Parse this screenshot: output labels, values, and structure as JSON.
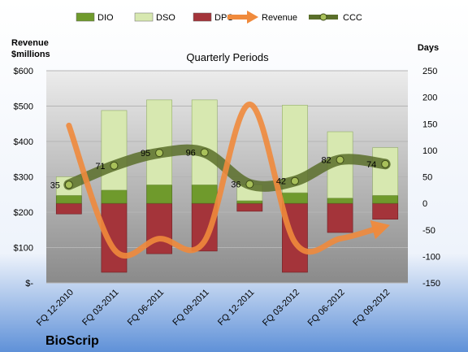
{
  "company": "BioScrip",
  "chart_data": {
    "type": "bar",
    "title": "Quarterly Periods",
    "y_left_label_line1": "Revenue",
    "y_left_label_line2": "$millions",
    "y_right_label": "Days",
    "y_left_range": [
      0,
      600
    ],
    "y_right_range": [
      -150,
      250
    ],
    "y_left_ticks": [
      "$-",
      "$100",
      "$200",
      "$300",
      "$400",
      "$500",
      "$600"
    ],
    "y_right_ticks": [
      "-150",
      "-100",
      "-50",
      "0",
      "50",
      "100",
      "150",
      "200",
      "250"
    ],
    "categories": [
      "FQ 12-2010",
      "FQ 03-2011",
      "FQ 06-2011",
      "FQ 09-2011",
      "FQ 12-2011",
      "FQ 03-2012",
      "FQ 06-2012",
      "FQ 09-2012"
    ],
    "legend_position": "top",
    "series": [
      {
        "name": "DIO",
        "axis": "right",
        "kind": "stacked-bar",
        "color": "#6f9a2c",
        "values": [
          15,
          25,
          35,
          35,
          5,
          20,
          10,
          15
        ]
      },
      {
        "name": "DSO",
        "axis": "right",
        "kind": "stacked-bar",
        "color": "#d7e8b0",
        "values": [
          35,
          150,
          160,
          160,
          30,
          165,
          125,
          90
        ]
      },
      {
        "name": "DPO",
        "axis": "right",
        "kind": "bar-negative",
        "color": "#a4343a",
        "values": [
          -20,
          -130,
          -95,
          -90,
          -15,
          -130,
          -55,
          -30
        ]
      },
      {
        "name": "Revenue",
        "axis": "left",
        "kind": "line",
        "color": "#f08a3c",
        "values": [
          445,
          95,
          125,
          118,
          505,
          115,
          125,
          160
        ]
      },
      {
        "name": "CCC",
        "axis": "right",
        "kind": "line",
        "color": "#5a6e2a",
        "values": [
          35,
          71,
          95,
          96,
          36,
          42,
          82,
          74
        ],
        "labels": [
          "35",
          "71",
          "95",
          "96",
          "36",
          "42",
          "82",
          "74"
        ]
      }
    ]
  }
}
